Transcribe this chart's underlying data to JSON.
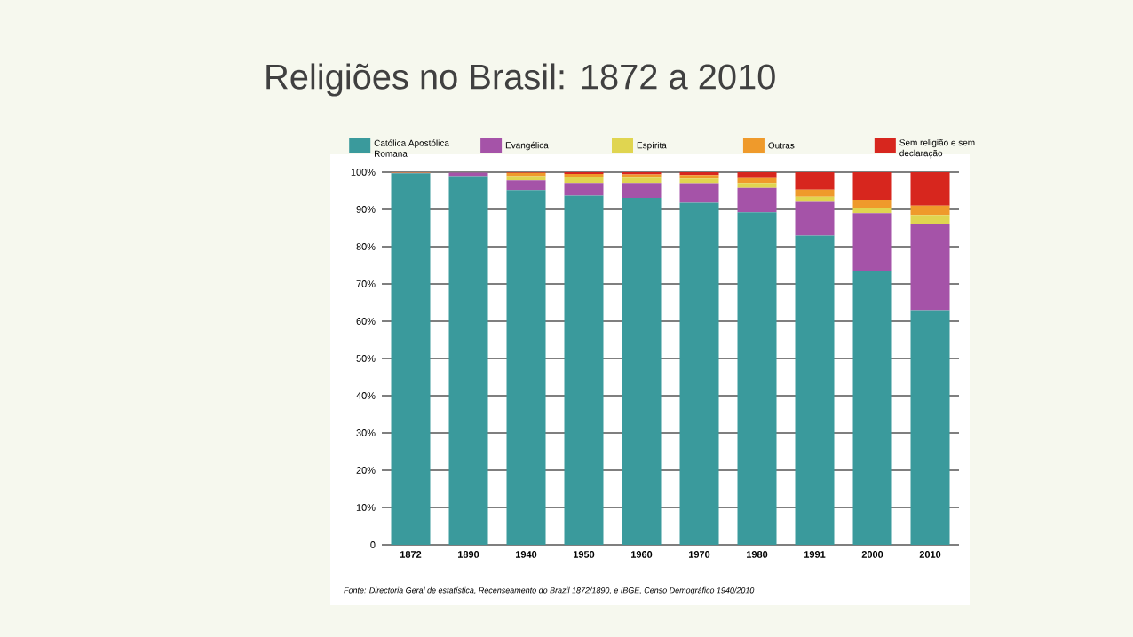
{
  "chart_data": {
    "type": "bar",
    "stacked": true,
    "title": "Religiões no Brasil: 1872 a 2010",
    "categories": [
      "1872",
      "1890",
      "1940",
      "1950",
      "1960",
      "1970",
      "1980",
      "1991",
      "2000",
      "2010"
    ],
    "series": [
      {
        "name": "Católica Apostólica Romana",
        "color": "#3a9a9c",
        "values": [
          99.7,
          98.9,
          95.2,
          93.7,
          93.1,
          91.8,
          89.2,
          83.0,
          73.6,
          63.0
        ]
      },
      {
        "name": "Evangélica",
        "color": "#a553a8",
        "values": [
          0.1,
          1.0,
          2.6,
          3.4,
          4.0,
          5.2,
          6.6,
          9.0,
          15.4,
          23.0
        ]
      },
      {
        "name": "Espírita",
        "color": "#e0d550",
        "values": [
          0.0,
          0.0,
          1.1,
          1.6,
          1.4,
          1.3,
          1.3,
          1.4,
          1.3,
          2.5
        ]
      },
      {
        "name": "Outras",
        "color": "#ef9a2b",
        "values": [
          0.2,
          null,
          0.9,
          0.8,
          0.9,
          0.9,
          1.3,
          1.9,
          2.3,
          2.5
        ]
      },
      {
        "name": "Sem religião e sem declaração",
        "color": "#d7261e",
        "values": [
          0.0,
          0.0,
          0.2,
          0.5,
          0.6,
          0.8,
          1.6,
          4.7,
          7.4,
          9.0
        ]
      }
    ],
    "ylim": [
      0,
      100
    ],
    "yticks": [
      {
        "value": 0,
        "label": "0"
      },
      {
        "value": 10,
        "label": "10%"
      },
      {
        "value": 20,
        "label": "20%"
      },
      {
        "value": 30,
        "label": "30%"
      },
      {
        "value": 40,
        "label": "40%"
      },
      {
        "value": 50,
        "label": "50%"
      },
      {
        "value": 60,
        "label": "60%"
      },
      {
        "value": 70,
        "label": "70%"
      },
      {
        "value": 80,
        "label": "80%"
      },
      {
        "value": 90,
        "label": "90%"
      },
      {
        "value": 100,
        "label": "100%"
      }
    ],
    "grid": "y",
    "legend": "top",
    "annotations": [
      "Fonte: Directoria Geral de estatística, Recenseamento do Brazil 1872/1890, e IBGE, Censo Demográfico 1940/2010"
    ]
  }
}
